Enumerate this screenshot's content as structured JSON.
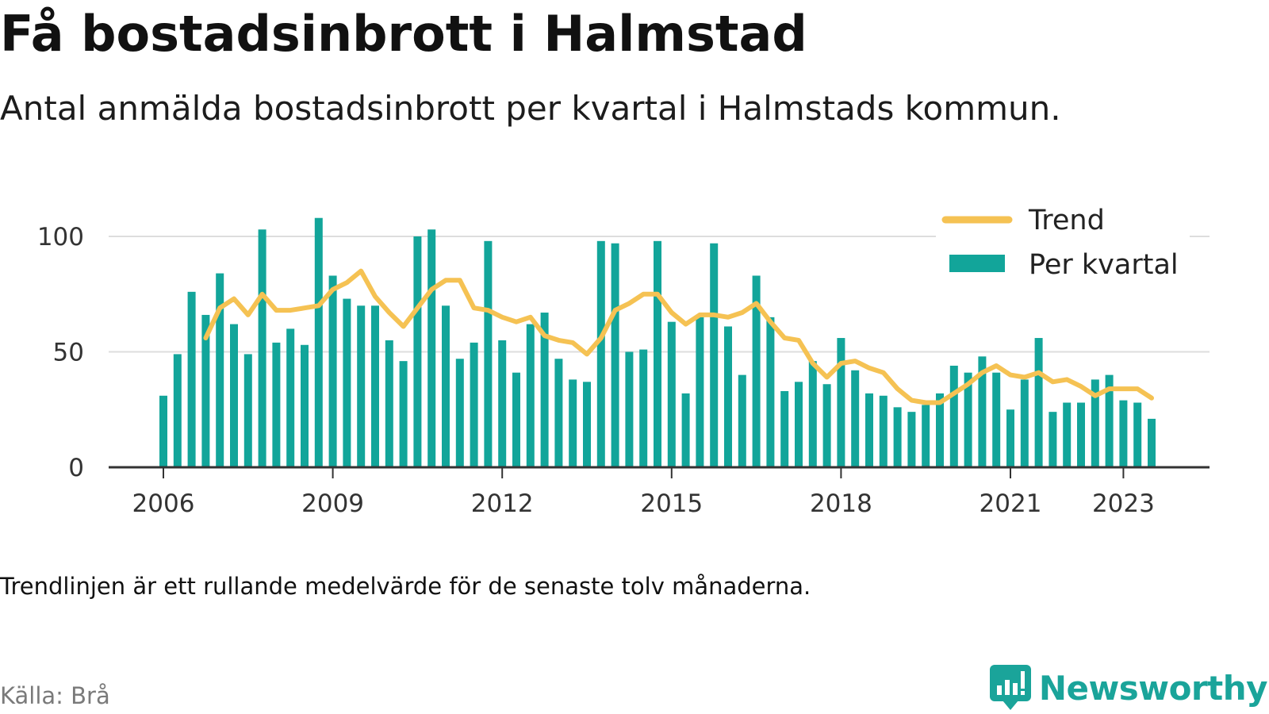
{
  "header": {
    "title": "Få bostadsinbrott i Halmstad",
    "subtitle": "Antal anmälda bostadsinbrott per kvartal i Halmstads kommun."
  },
  "footer": {
    "note": "Trendlinjen är ett rullande medelvärde för de senaste tolv månaderna.",
    "source": "Källa: Brå",
    "brand": "Newsworthy"
  },
  "colors": {
    "bar": "#12a59a",
    "trend": "#f5c253",
    "grid": "#dddddd",
    "axis": "#333333",
    "brand": "#1aa49a"
  },
  "icons": {
    "brand_logo": "chat-bar-chart-icon"
  },
  "chart_data": {
    "type": "bar",
    "x_start": "2006-Q1",
    "x_ticks": [
      "2006",
      "2009",
      "2012",
      "2015",
      "2018",
      "2021",
      "2023"
    ],
    "y_ticks": [
      0,
      50,
      100
    ],
    "ylim": [
      0,
      110
    ],
    "grid": true,
    "legend_position": "top-right",
    "series": [
      {
        "name": "Per kvartal",
        "type": "bar",
        "values": [
          31,
          49,
          76,
          66,
          84,
          62,
          49,
          103,
          54,
          60,
          53,
          108,
          83,
          73,
          70,
          70,
          55,
          46,
          100,
          103,
          70,
          47,
          54,
          98,
          55,
          41,
          62,
          67,
          47,
          38,
          37,
          98,
          97,
          50,
          51,
          98,
          63,
          32,
          65,
          97,
          61,
          40,
          83,
          65,
          33,
          37,
          46,
          36,
          56,
          42,
          32,
          31,
          26,
          24,
          27,
          32,
          44,
          41,
          48,
          41,
          25,
          38,
          56,
          24,
          28,
          28,
          38,
          40,
          29,
          28,
          21
        ]
      },
      {
        "name": "Trend",
        "type": "line",
        "values": [
          null,
          null,
          null,
          56,
          69,
          73,
          66,
          75,
          68,
          68,
          69,
          70,
          77,
          80,
          85,
          74,
          67,
          61,
          69,
          77,
          81,
          81,
          69,
          68,
          65,
          63,
          65,
          57,
          55,
          54,
          49,
          56,
          68,
          71,
          75,
          75,
          67,
          62,
          66,
          66,
          65,
          67,
          71,
          63,
          56,
          55,
          45,
          39,
          45,
          46,
          43,
          41,
          34,
          29,
          28,
          28,
          32,
          36,
          41,
          44,
          40,
          39,
          41,
          37,
          38,
          35,
          31,
          34,
          34,
          34,
          30
        ]
      }
    ]
  }
}
